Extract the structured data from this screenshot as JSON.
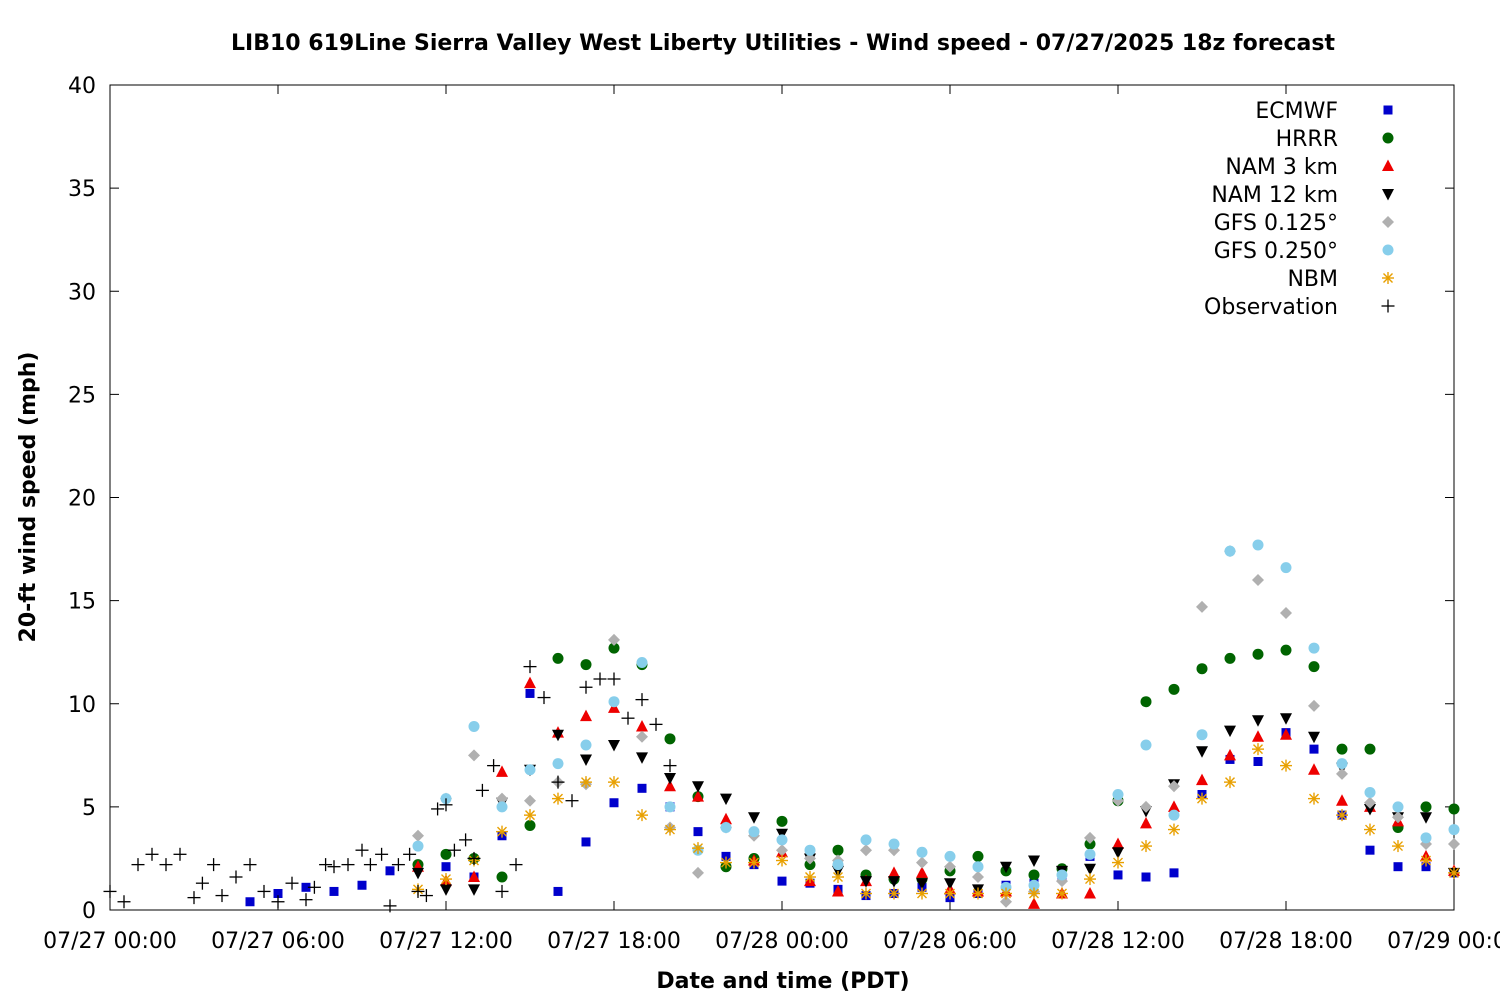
{
  "chart_data": {
    "type": "scatter",
    "title": "LIB10 619Line Sierra Valley West Liberty Utilities - Wind speed - 07/27/2025 18z forecast",
    "xlabel": "Date and time (PDT)",
    "ylabel": "20-ft wind speed (mph)",
    "x_unit": "hours since 07/27 00:00 PDT",
    "xlim": [
      0,
      48
    ],
    "ylim": [
      0,
      40
    ],
    "x_ticks": [
      {
        "x": 0,
        "label": "07/27 00:00"
      },
      {
        "x": 6,
        "label": "07/27 06:00"
      },
      {
        "x": 12,
        "label": "07/27 12:00"
      },
      {
        "x": 18,
        "label": "07/27 18:00"
      },
      {
        "x": 24,
        "label": "07/28 00:00"
      },
      {
        "x": 30,
        "label": "07/28 06:00"
      },
      {
        "x": 36,
        "label": "07/28 12:00"
      },
      {
        "x": 42,
        "label": "07/28 18:00"
      },
      {
        "x": 48,
        "label": "07/29 00:00"
      }
    ],
    "y_ticks": [
      "0",
      "5",
      "10",
      "15",
      "20",
      "25",
      "30",
      "35",
      "40"
    ],
    "y_tick_values": [
      0,
      5,
      10,
      15,
      20,
      25,
      30,
      35,
      40
    ],
    "legend_position": "top-right",
    "series": [
      {
        "name": "ECMWF",
        "color": "#0000cc",
        "marker": "square",
        "x": [
          5,
          6,
          7,
          8,
          9,
          10,
          11,
          12,
          13,
          14,
          15,
          16,
          17,
          18,
          19,
          20,
          21,
          22,
          23,
          24,
          25,
          26,
          27,
          28,
          29,
          30,
          31,
          32,
          33,
          34,
          35,
          36,
          37,
          38,
          39,
          40,
          41,
          42,
          43,
          44,
          45,
          46,
          47,
          48
        ],
        "y": [
          0.4,
          0.8,
          1.1,
          0.9,
          1.2,
          1.9,
          2.1,
          2.1,
          1.6,
          3.6,
          10.5,
          0.9,
          3.3,
          5.2,
          5.9,
          5.0,
          3.8,
          2.6,
          2.2,
          1.4,
          1.3,
          1.0,
          0.7,
          0.8,
          1.1,
          0.6,
          0.8,
          1.2,
          1.3,
          1.6,
          2.6,
          1.7,
          1.6,
          1.8,
          5.6,
          7.3,
          7.2,
          8.6,
          7.8,
          4.6,
          2.9,
          2.1,
          2.1,
          1.8
        ]
      },
      {
        "name": "HRRR",
        "color": "#006400",
        "marker": "circle",
        "x": [
          11,
          12,
          13,
          14,
          15,
          16,
          17,
          18,
          19,
          20,
          21,
          22,
          23,
          24,
          25,
          26,
          27,
          28,
          29,
          30,
          31,
          32,
          33,
          34,
          35,
          36,
          37,
          38,
          39,
          40,
          41,
          42,
          43,
          44,
          45,
          46,
          47,
          48
        ],
        "y": [
          2.2,
          2.7,
          2.5,
          1.6,
          4.1,
          12.2,
          11.9,
          12.7,
          11.9,
          8.3,
          5.5,
          2.1,
          2.5,
          4.3,
          2.2,
          2.9,
          1.7,
          1.5,
          1.5,
          1.9,
          2.6,
          1.9,
          1.7,
          2.0,
          3.2,
          5.3,
          10.1,
          10.7,
          11.7,
          12.2,
          12.4,
          12.6,
          11.8,
          7.8,
          7.8,
          4.0,
          5.0,
          4.9
        ]
      },
      {
        "name": "NAM 3 km",
        "color": "#ee0000",
        "marker": "triangle-up",
        "x": [
          11,
          12,
          13,
          14,
          15,
          16,
          17,
          18,
          19,
          20,
          21,
          22,
          23,
          24,
          25,
          26,
          27,
          28,
          29,
          30,
          31,
          32,
          33,
          34,
          35,
          36,
          37,
          38,
          39,
          40,
          41,
          42,
          43,
          44,
          45,
          46,
          47,
          48
        ],
        "y": [
          2.1,
          1.4,
          1.6,
          6.7,
          11.0,
          8.6,
          9.4,
          9.8,
          8.9,
          6.0,
          5.5,
          4.4,
          2.4,
          2.8,
          1.4,
          0.9,
          1.4,
          1.8,
          1.8,
          1.0,
          0.9,
          0.9,
          0.3,
          0.8,
          0.8,
          3.2,
          4.2,
          5.0,
          6.3,
          7.5,
          8.4,
          8.5,
          6.8,
          5.3,
          5.0,
          4.3,
          2.6,
          1.9
        ]
      },
      {
        "name": "NAM 12 km",
        "color": "#000000",
        "marker": "triangle-down",
        "x": [
          11,
          12,
          13,
          14,
          15,
          16,
          17,
          18,
          19,
          20,
          21,
          22,
          23,
          24,
          25,
          26,
          27,
          28,
          29,
          30,
          31,
          32,
          33,
          34,
          35,
          36,
          37,
          38,
          39,
          40,
          41,
          42,
          43,
          44,
          45,
          46,
          47,
          48
        ],
        "y": [
          1.8,
          1.0,
          1.0,
          5.2,
          6.8,
          8.5,
          7.3,
          8.0,
          7.4,
          6.4,
          6.0,
          5.4,
          4.5,
          3.7,
          2.5,
          1.9,
          1.4,
          1.4,
          1.3,
          1.3,
          1.0,
          2.1,
          2.4,
          1.9,
          2.0,
          2.8,
          4.8,
          6.1,
          7.7,
          8.7,
          9.2,
          9.3,
          8.4,
          6.9,
          4.9,
          4.5,
          4.5,
          1.8
        ]
      },
      {
        "name": "GFS 0.125°",
        "color": "#b0b0b0",
        "marker": "diamond",
        "x": [
          11,
          12,
          13,
          14,
          15,
          16,
          17,
          18,
          19,
          20,
          21,
          22,
          23,
          24,
          25,
          26,
          27,
          28,
          29,
          30,
          31,
          32,
          33,
          34,
          35,
          36,
          37,
          38,
          39,
          40,
          41,
          42,
          43,
          44,
          45,
          46,
          47,
          48
        ],
        "y": [
          3.6,
          5.4,
          7.5,
          5.4,
          5.3,
          6.2,
          6.1,
          13.1,
          8.4,
          4.0,
          1.8,
          4.0,
          3.6,
          2.9,
          2.5,
          2.4,
          2.9,
          2.9,
          2.3,
          2.1,
          1.6,
          0.4,
          0.9,
          1.4,
          3.5,
          5.3,
          5.0,
          6.0,
          14.7,
          17.4,
          16.0,
          14.4,
          9.9,
          6.6,
          5.2,
          4.5,
          3.2,
          3.2
        ]
      },
      {
        "name": "GFS 0.250°",
        "color": "#87ceeb",
        "marker": "circle",
        "x": [
          11,
          12,
          13,
          14,
          15,
          16,
          17,
          18,
          19,
          20,
          21,
          22,
          23,
          24,
          25,
          26,
          27,
          28,
          29,
          30,
          31,
          32,
          33,
          34,
          35,
          36,
          37,
          38,
          39,
          40,
          41,
          42,
          43,
          44,
          45,
          46,
          47,
          48
        ],
        "y": [
          3.1,
          5.4,
          8.9,
          5.0,
          6.8,
          7.1,
          8.0,
          10.1,
          12.0,
          5.0,
          2.9,
          4.0,
          3.8,
          3.4,
          2.9,
          2.2,
          3.4,
          3.2,
          2.8,
          2.6,
          2.1,
          1.1,
          1.2,
          1.7,
          2.7,
          5.6,
          8.0,
          4.6,
          8.5,
          17.4,
          17.7,
          16.6,
          12.7,
          7.1,
          5.7,
          5.0,
          3.5,
          3.9
        ]
      },
      {
        "name": "NBM",
        "color": "#e8a000",
        "marker": "asterisk",
        "x": [
          11,
          12,
          13,
          14,
          15,
          16,
          17,
          18,
          19,
          20,
          21,
          22,
          23,
          24,
          25,
          26,
          27,
          28,
          29,
          30,
          31,
          32,
          33,
          34,
          35,
          36,
          37,
          38,
          39,
          40,
          41,
          42,
          43,
          44,
          45,
          46,
          47,
          48
        ],
        "y": [
          1.0,
          1.5,
          2.4,
          3.8,
          4.6,
          5.4,
          6.2,
          6.2,
          4.6,
          3.9,
          3.0,
          2.3,
          2.3,
          2.4,
          1.6,
          1.6,
          0.8,
          0.8,
          0.8,
          0.8,
          0.8,
          0.8,
          0.8,
          0.8,
          1.5,
          2.3,
          3.1,
          3.9,
          5.4,
          6.2,
          7.8,
          7.0,
          5.4,
          4.6,
          3.9,
          3.1,
          2.4,
          1.8
        ]
      },
      {
        "name": "Observation",
        "color": "#000000",
        "marker": "plus",
        "x": [
          0,
          0.5,
          1,
          1.5,
          2,
          2.5,
          3,
          3.3,
          3.7,
          4,
          4.5,
          5,
          5.5,
          6,
          6.5,
          7,
          7.3,
          7.7,
          8,
          8.5,
          9,
          9.3,
          9.7,
          10,
          10.3,
          10.7,
          11,
          11.3,
          11.7,
          12,
          12.3,
          12.7,
          13,
          13.3,
          13.7,
          14,
          14.5,
          15,
          15.5,
          16,
          16.5,
          17,
          17.5,
          18,
          18.5,
          19,
          19.5,
          20
        ],
        "y": [
          0.9,
          0.4,
          2.2,
          2.7,
          2.2,
          2.7,
          0.6,
          1.3,
          2.2,
          0.7,
          1.6,
          2.2,
          0.9,
          0.4,
          1.3,
          0.5,
          1.1,
          2.2,
          2.1,
          2.2,
          2.9,
          2.2,
          2.7,
          0.2,
          2.2,
          2.7,
          0.9,
          0.7,
          4.9,
          5.1,
          2.9,
          3.4,
          2.5,
          5.8,
          7.0,
          0.9,
          2.2,
          11.8,
          10.3,
          6.2,
          5.3,
          10.8,
          11.2,
          11.2,
          9.3,
          10.2,
          9.0,
          7.0
        ]
      }
    ]
  }
}
